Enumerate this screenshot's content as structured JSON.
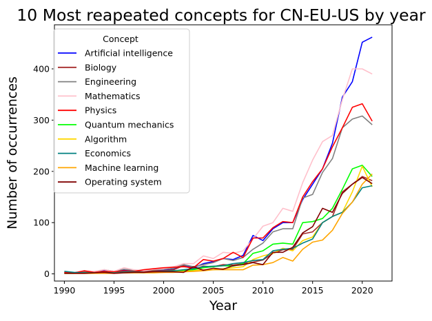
{
  "chart_data": {
    "type": "line",
    "title": "10 Most reapeated concepts for CN-EU-US by year",
    "xlabel": "Year",
    "ylabel": "Number of occurrences",
    "xlim": [
      1989,
      2023
    ],
    "ylim": [
      -14,
      486
    ],
    "x_ticks": [
      1990,
      1995,
      2000,
      2005,
      2010,
      2015,
      2020
    ],
    "y_ticks": [
      0,
      100,
      200,
      300,
      400
    ],
    "grid": false,
    "legend": {
      "title": "Concept",
      "placement": "top-left"
    },
    "x": [
      1990,
      1991,
      1992,
      1993,
      1994,
      1995,
      1996,
      1997,
      1998,
      1999,
      2000,
      2001,
      2002,
      2003,
      2004,
      2005,
      2006,
      2007,
      2008,
      2009,
      2010,
      2011,
      2012,
      2013,
      2014,
      2015,
      2016,
      2017,
      2018,
      2019,
      2020,
      2021
    ],
    "series": [
      {
        "name": "Artificial intelligence",
        "color": "#0000ff",
        "values": [
          2,
          2,
          4,
          3,
          6,
          4,
          8,
          5,
          4,
          6,
          7,
          9,
          18,
          12,
          20,
          24,
          30,
          28,
          36,
          75,
          65,
          88,
          100,
          100,
          145,
          175,
          205,
          255,
          345,
          375,
          452,
          462
        ]
      },
      {
        "name": "Biology",
        "color": "#a52a2a",
        "values": [
          2,
          3,
          4,
          3,
          5,
          3,
          5,
          5,
          4,
          6,
          6,
          8,
          16,
          9,
          15,
          14,
          18,
          17,
          20,
          23,
          27,
          40,
          47,
          48,
          78,
          82,
          100,
          112,
          160,
          175,
          190,
          182
        ]
      },
      {
        "name": "Engineering",
        "color": "#808080",
        "values": [
          3,
          3,
          5,
          4,
          8,
          5,
          9,
          7,
          6,
          8,
          9,
          11,
          18,
          14,
          18,
          22,
          30,
          26,
          32,
          48,
          60,
          82,
          88,
          88,
          148,
          155,
          198,
          225,
          285,
          302,
          308,
          291
        ]
      },
      {
        "name": "Mathematics",
        "color": "#ffc0cb",
        "values": [
          4,
          3,
          6,
          5,
          8,
          5,
          12,
          8,
          6,
          9,
          10,
          14,
          20,
          20,
          35,
          30,
          42,
          40,
          45,
          68,
          93,
          100,
          128,
          122,
          178,
          222,
          258,
          270,
          340,
          400,
          400,
          390
        ]
      },
      {
        "name": "Physics",
        "color": "#ff0000",
        "values": [
          3,
          2,
          6,
          3,
          5,
          4,
          6,
          5,
          8,
          10,
          12,
          13,
          14,
          12,
          28,
          25,
          30,
          42,
          32,
          70,
          70,
          90,
          102,
          100,
          150,
          180,
          205,
          248,
          285,
          325,
          332,
          298
        ]
      },
      {
        "name": "Quantum mechanics",
        "color": "#00ff00",
        "values": [
          1,
          1,
          2,
          2,
          3,
          2,
          3,
          3,
          2,
          4,
          4,
          6,
          6,
          8,
          12,
          14,
          16,
          15,
          20,
          40,
          45,
          58,
          60,
          58,
          100,
          102,
          108,
          128,
          165,
          205,
          212,
          190
        ]
      },
      {
        "name": "Algorithm",
        "color": "#ffd700",
        "values": [
          1,
          1,
          1,
          1,
          2,
          2,
          2,
          2,
          3,
          3,
          3,
          4,
          5,
          6,
          8,
          8,
          10,
          12,
          14,
          28,
          35,
          40,
          50,
          45,
          65,
          72,
          100,
          112,
          120,
          160,
          210,
          170
        ]
      },
      {
        "name": "Economics",
        "color": "#008080",
        "values": [
          5,
          3,
          2,
          2,
          3,
          2,
          4,
          4,
          3,
          4,
          5,
          6,
          8,
          10,
          14,
          15,
          16,
          20,
          22,
          26,
          28,
          45,
          48,
          50,
          60,
          68,
          100,
          112,
          120,
          140,
          168,
          172
        ]
      },
      {
        "name": "Machine learning",
        "color": "#ffa500",
        "values": [
          1,
          1,
          1,
          1,
          1,
          1,
          2,
          2,
          2,
          2,
          3,
          3,
          4,
          5,
          6,
          8,
          8,
          8,
          8,
          17,
          18,
          22,
          32,
          25,
          48,
          62,
          66,
          85,
          118,
          140,
          175,
          195
        ]
      },
      {
        "name": "Operating system",
        "color": "#800000",
        "values": [
          1,
          1,
          1,
          2,
          3,
          1,
          2,
          3,
          3,
          4,
          4,
          4,
          3,
          14,
          7,
          11,
          9,
          16,
          18,
          22,
          18,
          42,
          42,
          52,
          80,
          92,
          128,
          120,
          157,
          175,
          188,
          176
        ]
      }
    ]
  }
}
